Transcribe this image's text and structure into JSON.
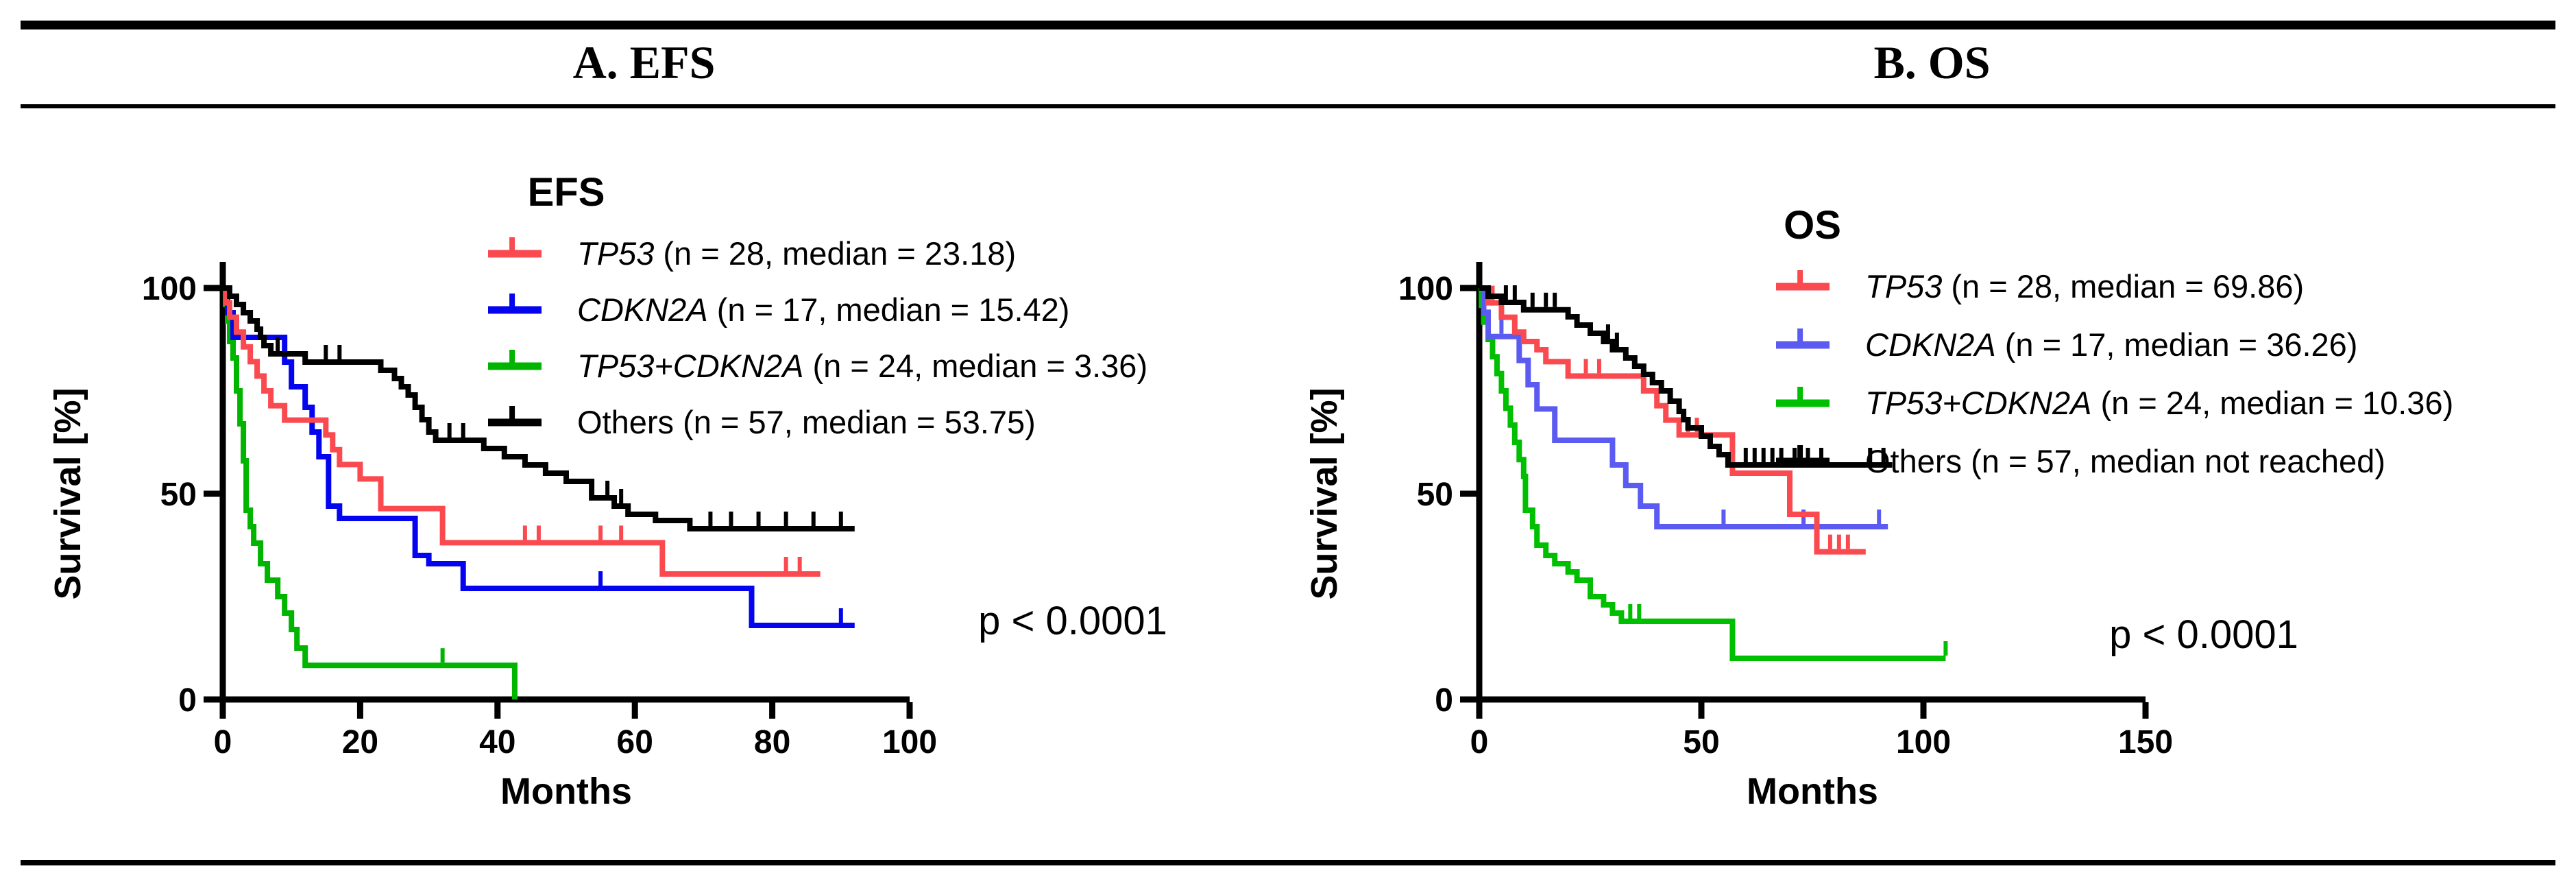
{
  "header": {
    "panel_a_title": "A. EFS",
    "panel_b_title": "B. OS"
  },
  "chart_data": [
    {
      "type": "line",
      "subtype": "kaplan-meier",
      "panel": "A",
      "title": "EFS",
      "xlabel": "Months",
      "ylabel": "Survival [%]",
      "xlim": [
        0,
        100
      ],
      "xticks": [
        0,
        20,
        40,
        60,
        80,
        100
      ],
      "ylim": [
        0,
        100
      ],
      "yticks": [
        0,
        50,
        100
      ],
      "p_value": "p < 0.0001",
      "legend_position": "top-right",
      "grid": false,
      "series": [
        {
          "name": "TP53",
          "gene_label": "TP53",
          "label_rest": " (n = 28, median = 23.18)",
          "n": 28,
          "median": 23.18,
          "color": "#fa4a50",
          "steps": [
            [
              0,
              100
            ],
            [
              0.5,
              96.4
            ],
            [
              1,
              92.9
            ],
            [
              2,
              89.3
            ],
            [
              3,
              85.7
            ],
            [
              4,
              82.1
            ],
            [
              5,
              78.6
            ],
            [
              6,
              75
            ],
            [
              7,
              71.4
            ],
            [
              9,
              67.9
            ],
            [
              15,
              64.3
            ],
            [
              16,
              60.7
            ],
            [
              17,
              57.1
            ],
            [
              20,
              53.6
            ],
            [
              23,
              46.4
            ],
            [
              32,
              38.1
            ],
            [
              64,
              30.5
            ],
            [
              87,
              30.5
            ]
          ],
          "censors": [
            44,
            46,
            55,
            58,
            82,
            84
          ]
        },
        {
          "name": "CDKN2A",
          "gene_label": "CDKN2A",
          "label_rest": " (n = 17, median = 15.42)",
          "n": 17,
          "median": 15.42,
          "color": "#0404ee",
          "steps": [
            [
              0,
              100
            ],
            [
              0.7,
              94
            ],
            [
              1.5,
              88
            ],
            [
              9,
              82
            ],
            [
              10,
              76
            ],
            [
              12,
              71
            ],
            [
              13,
              65
            ],
            [
              14,
              59
            ],
            [
              15.4,
              47
            ],
            [
              17,
              44
            ],
            [
              28,
              35
            ],
            [
              30,
              33
            ],
            [
              35,
              27
            ],
            [
              77,
              18
            ],
            [
              92,
              18
            ]
          ],
          "censors": [
            55,
            90
          ]
        },
        {
          "name": "TP53+CDKN2A",
          "gene_label": "TP53+CDKN2A",
          "label_rest": " (n = 24, median = 3.36)",
          "n": 24,
          "median": 3.36,
          "color": "#00b400",
          "steps": [
            [
              0,
              100
            ],
            [
              0.4,
              96
            ],
            [
              0.7,
              92
            ],
            [
              1,
              87
            ],
            [
              1.5,
              83
            ],
            [
              2,
              75
            ],
            [
              2.5,
              67
            ],
            [
              3,
              58
            ],
            [
              3.4,
              46
            ],
            [
              4,
              42
            ],
            [
              4.5,
              38
            ],
            [
              5.5,
              33
            ],
            [
              6.5,
              29
            ],
            [
              8,
              25
            ],
            [
              9,
              21
            ],
            [
              10,
              17
            ],
            [
              10.8,
              12.5
            ],
            [
              12,
              8.3
            ],
            [
              42,
              8.3
            ],
            [
              42.5,
              0
            ]
          ],
          "censors": [
            32
          ]
        },
        {
          "name": "Others",
          "gene_label": "",
          "label_rest": "Others (n = 57, median = 53.75)",
          "n": 57,
          "median": 53.75,
          "color": "#000000",
          "steps": [
            [
              0,
              100
            ],
            [
              1,
              98
            ],
            [
              2,
              96
            ],
            [
              3,
              94
            ],
            [
              4,
              92
            ],
            [
              5,
              90
            ],
            [
              5.5,
              88
            ],
            [
              6,
              86
            ],
            [
              7,
              84
            ],
            [
              12,
              82
            ],
            [
              23,
              80
            ],
            [
              25,
              78
            ],
            [
              26,
              76
            ],
            [
              27,
              74
            ],
            [
              28,
              71
            ],
            [
              29,
              68
            ],
            [
              30,
              65
            ],
            [
              31,
              63
            ],
            [
              38,
              61
            ],
            [
              41,
              59
            ],
            [
              44,
              57
            ],
            [
              47,
              55
            ],
            [
              50,
              53
            ],
            [
              53.7,
              49
            ],
            [
              57,
              47
            ],
            [
              59,
              45
            ],
            [
              63,
              43.5
            ],
            [
              68,
              41.5
            ],
            [
              92,
              41.5
            ]
          ],
          "censors": [
            8,
            15,
            17,
            33,
            35,
            56,
            58,
            71,
            74,
            78,
            82,
            86,
            90
          ]
        }
      ]
    },
    {
      "type": "line",
      "subtype": "kaplan-meier",
      "panel": "B",
      "title": "OS",
      "xlabel": "Months",
      "ylabel": "Survival [%]",
      "xlim": [
        0,
        150
      ],
      "xticks": [
        0,
        50,
        100,
        150
      ],
      "ylim": [
        0,
        100
      ],
      "yticks": [
        0,
        50,
        100
      ],
      "p_value": "p < 0.0001",
      "legend_position": "top-right",
      "grid": false,
      "series": [
        {
          "name": "TP53",
          "gene_label": "TP53",
          "label_rest": " (n = 28, median = 69.86)",
          "n": 28,
          "median": 69.86,
          "color": "#fa4a50",
          "steps": [
            [
              0,
              100
            ],
            [
              2,
              96.4
            ],
            [
              5,
              92.9
            ],
            [
              8,
              89.3
            ],
            [
              10,
              87
            ],
            [
              13,
              85
            ],
            [
              15,
              82.1
            ],
            [
              20,
              78.6
            ],
            [
              37,
              75
            ],
            [
              40,
              71.4
            ],
            [
              42,
              67.9
            ],
            [
              45,
              64.3
            ],
            [
              57,
              55
            ],
            [
              69.9,
              45
            ],
            [
              76,
              35.9
            ],
            [
              87,
              35.9
            ]
          ],
          "censors": [
            3,
            24,
            27,
            47,
            49,
            79,
            81,
            83
          ]
        },
        {
          "name": "CDKN2A",
          "gene_label": "CDKN2A",
          "label_rest": " (n = 17, median = 36.26)",
          "n": 17,
          "median": 36.26,
          "color": "#5b5bf2",
          "steps": [
            [
              0,
              100
            ],
            [
              1,
              94.1
            ],
            [
              2,
              88.2
            ],
            [
              9,
              82.4
            ],
            [
              11,
              76.5
            ],
            [
              13,
              70.6
            ],
            [
              17,
              63
            ],
            [
              30,
              57
            ],
            [
              33,
              52
            ],
            [
              36.3,
              47
            ],
            [
              40,
              42
            ],
            [
              92,
              42
            ]
          ],
          "censors": [
            5,
            55,
            73,
            90
          ]
        },
        {
          "name": "TP53+CDKN2A",
          "gene_label": "TP53+CDKN2A",
          "label_rest": " (n = 24, median = 10.36)",
          "n": 24,
          "median": 10.36,
          "color": "#00bf00",
          "steps": [
            [
              0,
              100
            ],
            [
              0.5,
              95.8
            ],
            [
              1,
              91.7
            ],
            [
              2,
              87.5
            ],
            [
              3,
              83.3
            ],
            [
              4,
              79.2
            ],
            [
              5,
              75
            ],
            [
              6,
              70.8
            ],
            [
              7,
              66.7
            ],
            [
              8,
              62.5
            ],
            [
              9,
              58.3
            ],
            [
              10,
              54.2
            ],
            [
              10.4,
              46
            ],
            [
              12,
              42
            ],
            [
              13,
              37.5
            ],
            [
              15,
              35
            ],
            [
              17,
              33
            ],
            [
              20,
              31
            ],
            [
              22,
              29
            ],
            [
              25,
              25
            ],
            [
              28,
              23
            ],
            [
              30,
              21
            ],
            [
              32,
              19
            ],
            [
              56,
              19
            ],
            [
              57,
              10
            ],
            [
              105,
              10
            ]
          ],
          "censors": [
            34,
            36,
            105
          ]
        },
        {
          "name": "Others",
          "gene_label": "",
          "label_rest": "Others (n = 57, median not reached)",
          "n": 57,
          "median": "not reached",
          "color": "#000000",
          "steps": [
            [
              0,
              100
            ],
            [
              2,
              98
            ],
            [
              5,
              96.5
            ],
            [
              10,
              94.7
            ],
            [
              20,
              93
            ],
            [
              22,
              91
            ],
            [
              25,
              89
            ],
            [
              28,
              87
            ],
            [
              30,
              85
            ],
            [
              33,
              83
            ],
            [
              35,
              81
            ],
            [
              37,
              79
            ],
            [
              39,
              77
            ],
            [
              41,
              75
            ],
            [
              43,
              72.5
            ],
            [
              45,
              70
            ],
            [
              46,
              68
            ],
            [
              47,
              66
            ],
            [
              50,
              64
            ],
            [
              52,
              61.5
            ],
            [
              54,
              59.5
            ],
            [
              56,
              57
            ],
            [
              93,
              57
            ]
          ],
          "censors": [
            6,
            8,
            12,
            15,
            17,
            29,
            31,
            60,
            62,
            64,
            66,
            68,
            71,
            74,
            77,
            88,
            91
          ]
        }
      ]
    }
  ]
}
